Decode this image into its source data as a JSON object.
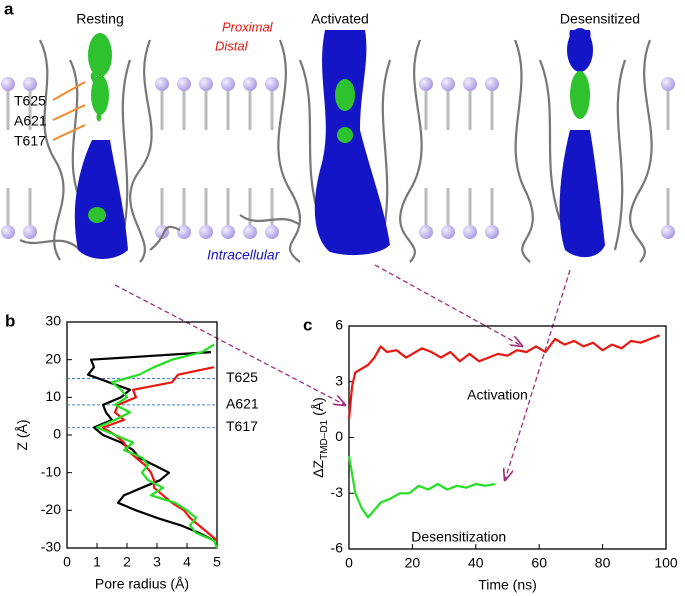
{
  "panel_a": {
    "label": "a",
    "states": [
      "Resting",
      "Activated",
      "Desensitized"
    ],
    "proximal": "Proximal",
    "distal": "Distal",
    "residues": [
      "T625",
      "A621",
      "T617"
    ],
    "intracellular": "Intracellular"
  },
  "chart_data": [
    {
      "type": "line",
      "panel_label": "b",
      "xlabel": "Pore radius (Å)",
      "ylabel": "Z (Å)",
      "xlim": [
        0,
        5
      ],
      "xticks": [
        0,
        1,
        2,
        3,
        4,
        5
      ],
      "ylim": [
        -30,
        30
      ],
      "yticks": [
        -30,
        -20,
        -10,
        0,
        10,
        20,
        30
      ],
      "z": [
        24,
        22,
        20,
        18,
        16,
        14,
        12,
        10,
        8,
        6,
        4,
        2,
        0,
        -2,
        -4,
        -6,
        -8,
        -10,
        -12,
        -14,
        -16,
        -18,
        -20,
        -22,
        -24,
        -26,
        -28,
        -30
      ],
      "series": [
        {
          "color": "#000000",
          "values": [
            null,
            4.8,
            0.8,
            0.9,
            0.7,
            1.4,
            2.1,
            1.8,
            1.2,
            1.3,
            1.5,
            0.9,
            1.2,
            1.8,
            2.2,
            2.4,
            2.9,
            3.4,
            3.1,
            2.5,
            1.9,
            1.7,
            2.3,
            3.0,
            3.8,
            4.4,
            4.9,
            null
          ]
        },
        {
          "color": "#e8170f",
          "values": [
            null,
            null,
            null,
            4.9,
            3.7,
            3.5,
            2.2,
            2.3,
            1.7,
            1.6,
            1.9,
            1.2,
            1.6,
            1.9,
            2.0,
            2.3,
            2.6,
            2.8,
            2.9,
            2.9,
            3.2,
            3.5,
            3.9,
            4.1,
            4.4,
            4.7,
            5.0,
            null
          ]
        },
        {
          "color": "#22e022",
          "values": [
            4.9,
            4.5,
            3.5,
            2.9,
            2.4,
            1.5,
            1.8,
            2.0,
            1.6,
            2.1,
            1.6,
            1.0,
            1.6,
            2.2,
            1.9,
            2.5,
            2.7,
            2.5,
            2.7,
            3.2,
            2.8,
            3.6,
            4.0,
            4.3,
            4.1,
            4.3,
            4.9,
            5.0
          ]
        }
      ],
      "reference_lines": [
        {
          "value": 15,
          "label": "T625"
        },
        {
          "value": 8,
          "label": "A621"
        },
        {
          "value": 2,
          "label": "T617"
        }
      ],
      "reference_color": "#4a7fd6"
    },
    {
      "type": "line",
      "panel_label": "c",
      "xlabel": "Time (ns)",
      "ylabel": "ΔZ",
      "ylabel_subscript": "TMD–D1",
      "ylabel_unit": "(Å)",
      "xlim": [
        0,
        100
      ],
      "xticks": [
        0,
        20,
        40,
        60,
        80,
        100
      ],
      "ylim": [
        -6,
        6
      ],
      "yticks": [
        -6,
        -3,
        0,
        3,
        6
      ],
      "series": [
        {
          "name": "Activation",
          "color": "#e8170f",
          "x": [
            0,
            1,
            2,
            4,
            6,
            8,
            10,
            12,
            15,
            18,
            20,
            23,
            26,
            29,
            32,
            35,
            38,
            41,
            44,
            47,
            50,
            53,
            56,
            59,
            62,
            65,
            68,
            71,
            74,
            77,
            80,
            83,
            86,
            89,
            92,
            95,
            98
          ],
          "values": [
            1.0,
            2.8,
            3.5,
            3.7,
            3.9,
            4.3,
            4.9,
            4.6,
            4.7,
            4.3,
            4.5,
            4.8,
            4.6,
            4.3,
            4.6,
            4.1,
            4.5,
            4.1,
            4.3,
            4.5,
            4.4,
            4.7,
            4.6,
            4.9,
            4.6,
            5.3,
            5.0,
            5.2,
            4.9,
            5.1,
            4.7,
            5.0,
            4.8,
            5.2,
            5.1,
            5.3,
            5.5
          ]
        },
        {
          "name": "Desensitization",
          "color": "#22e022",
          "x": [
            0,
            1,
            2,
            4,
            6,
            8,
            10,
            13,
            16,
            19,
            22,
            25,
            28,
            31,
            34,
            37,
            40,
            43,
            46
          ],
          "values": [
            -1.0,
            -2.0,
            -3.0,
            -3.8,
            -4.3,
            -3.9,
            -3.5,
            -3.3,
            -3.0,
            -3.0,
            -2.6,
            -2.8,
            -2.5,
            -2.8,
            -2.6,
            -2.7,
            -2.5,
            -2.6,
            -2.5
          ]
        }
      ]
    }
  ]
}
